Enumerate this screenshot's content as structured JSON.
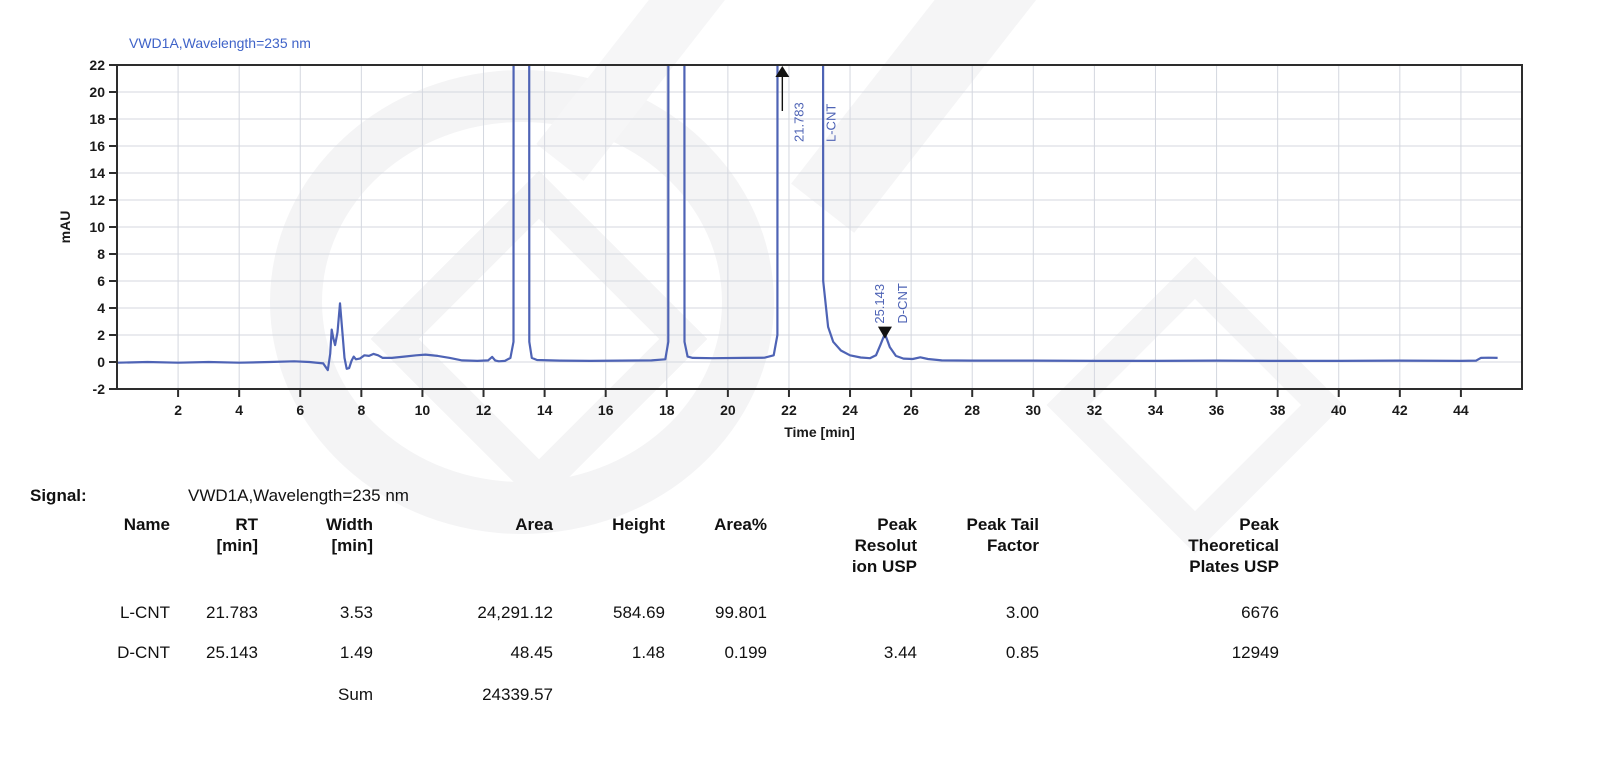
{
  "chart_data": {
    "type": "line",
    "title": "VWD1A,Wavelength=235 nm",
    "xlabel": "Time [min]",
    "ylabel": "mAU",
    "xlim": [
      0,
      46
    ],
    "ylim": [
      -2,
      22
    ],
    "xticks": [
      2,
      4,
      6,
      8,
      10,
      12,
      14,
      16,
      18,
      20,
      22,
      24,
      26,
      28,
      30,
      32,
      34,
      36,
      38,
      40,
      42,
      44
    ],
    "yticks": [
      -2,
      0,
      2,
      4,
      6,
      8,
      10,
      12,
      14,
      16,
      18,
      20,
      22
    ],
    "grid": true,
    "legend": "none",
    "colors": {
      "trace": "#4e63b5",
      "title": "#3f63c8",
      "annotation": "#4e63b5",
      "axis": "#1a1a1a",
      "gridline": "#d4d7df"
    },
    "series": [
      {
        "name": "VWD1A,Wavelength=235 nm",
        "points": [
          [
            0,
            -0.05
          ],
          [
            1,
            0
          ],
          [
            2,
            -0.05
          ],
          [
            3,
            0
          ],
          [
            4,
            -0.05
          ],
          [
            5,
            0
          ],
          [
            5.8,
            0.05
          ],
          [
            6.3,
            0
          ],
          [
            6.75,
            -0.1
          ],
          [
            6.9,
            -0.6
          ],
          [
            6.98,
            0.6
          ],
          [
            7.03,
            2.4
          ],
          [
            7.08,
            1.8
          ],
          [
            7.14,
            1.25
          ],
          [
            7.22,
            2.2
          ],
          [
            7.3,
            4.35
          ],
          [
            7.38,
            2.2
          ],
          [
            7.45,
            0.3
          ],
          [
            7.52,
            -0.5
          ],
          [
            7.6,
            -0.45
          ],
          [
            7.68,
            0.1
          ],
          [
            7.75,
            0.4
          ],
          [
            7.82,
            0.2
          ],
          [
            7.95,
            0.25
          ],
          [
            8.1,
            0.5
          ],
          [
            8.25,
            0.45
          ],
          [
            8.4,
            0.6
          ],
          [
            8.55,
            0.5
          ],
          [
            8.7,
            0.3
          ],
          [
            9.0,
            0.3
          ],
          [
            9.4,
            0.4
          ],
          [
            9.8,
            0.5
          ],
          [
            10.1,
            0.55
          ],
          [
            10.5,
            0.45
          ],
          [
            10.9,
            0.3
          ],
          [
            11.3,
            0.12
          ],
          [
            11.8,
            0.08
          ],
          [
            12.15,
            0.12
          ],
          [
            12.28,
            0.38
          ],
          [
            12.38,
            0.12
          ],
          [
            12.5,
            0.05
          ],
          [
            12.7,
            0.08
          ],
          [
            12.88,
            0.3
          ],
          [
            12.98,
            1.5
          ],
          [
            13.05,
            600
          ],
          [
            13.42,
            600
          ],
          [
            13.5,
            1.5
          ],
          [
            13.58,
            0.3
          ],
          [
            13.75,
            0.15
          ],
          [
            14.5,
            0.1
          ],
          [
            15.5,
            0.08
          ],
          [
            16.5,
            0.1
          ],
          [
            17.5,
            0.12
          ],
          [
            17.95,
            0.2
          ],
          [
            18.05,
            1.5
          ],
          [
            18.12,
            600
          ],
          [
            18.5,
            600
          ],
          [
            18.58,
            1.5
          ],
          [
            18.68,
            0.4
          ],
          [
            18.85,
            0.3
          ],
          [
            19.5,
            0.28
          ],
          [
            20.5,
            0.3
          ],
          [
            21.2,
            0.32
          ],
          [
            21.5,
            0.5
          ],
          [
            21.62,
            2
          ],
          [
            21.7,
            584.69
          ],
          [
            23.0,
            584.69
          ],
          [
            23.12,
            6
          ],
          [
            23.28,
            2.6
          ],
          [
            23.45,
            1.5
          ],
          [
            23.7,
            0.85
          ],
          [
            24.0,
            0.5
          ],
          [
            24.35,
            0.33
          ],
          [
            24.65,
            0.28
          ],
          [
            24.85,
            0.5
          ],
          [
            25.0,
            1.3
          ],
          [
            25.14,
            2.1
          ],
          [
            25.3,
            1.1
          ],
          [
            25.5,
            0.45
          ],
          [
            25.75,
            0.25
          ],
          [
            26.05,
            0.22
          ],
          [
            26.3,
            0.35
          ],
          [
            26.55,
            0.22
          ],
          [
            27.0,
            0.12
          ],
          [
            28,
            0.1
          ],
          [
            30,
            0.1
          ],
          [
            32,
            0.08
          ],
          [
            34,
            0.08
          ],
          [
            36,
            0.1
          ],
          [
            38,
            0.08
          ],
          [
            40,
            0.08
          ],
          [
            42,
            0.1
          ],
          [
            44,
            0.08
          ],
          [
            44.5,
            0.1
          ],
          [
            44.65,
            0.3
          ],
          [
            44.9,
            0.32
          ],
          [
            45.2,
            0.3
          ]
        ]
      }
    ],
    "peaks": [
      {
        "name": "L-CNT",
        "rt": 21.783,
        "rt_label": "21.783",
        "marker": "up",
        "clipped": true
      },
      {
        "name": "D-CNT",
        "rt": 25.143,
        "rt_label": "25.143",
        "marker": "down",
        "apex": 2.1
      }
    ]
  },
  "signal_table": {
    "signal_label": "Signal:",
    "signal_value": "VWD1A,Wavelength=235 nm",
    "headers": [
      "Name",
      "RT\n[min]",
      "Width\n[min]",
      "Area",
      "Height",
      "Area%",
      "Peak\nResolut\nion USP",
      "Peak Tail\nFactor",
      "Peak\nTheoretical\nPlates USP"
    ],
    "rows": [
      [
        "L-CNT",
        "21.783",
        "3.53",
        "24,291.12",
        "584.69",
        "99.801",
        "",
        "3.00",
        "6676"
      ],
      [
        "D-CNT",
        "25.143",
        "1.49",
        "48.45",
        "1.48",
        "0.199",
        "3.44",
        "0.85",
        "12949"
      ]
    ],
    "sum_row": {
      "label": "Sum",
      "area": "24339.57"
    }
  }
}
